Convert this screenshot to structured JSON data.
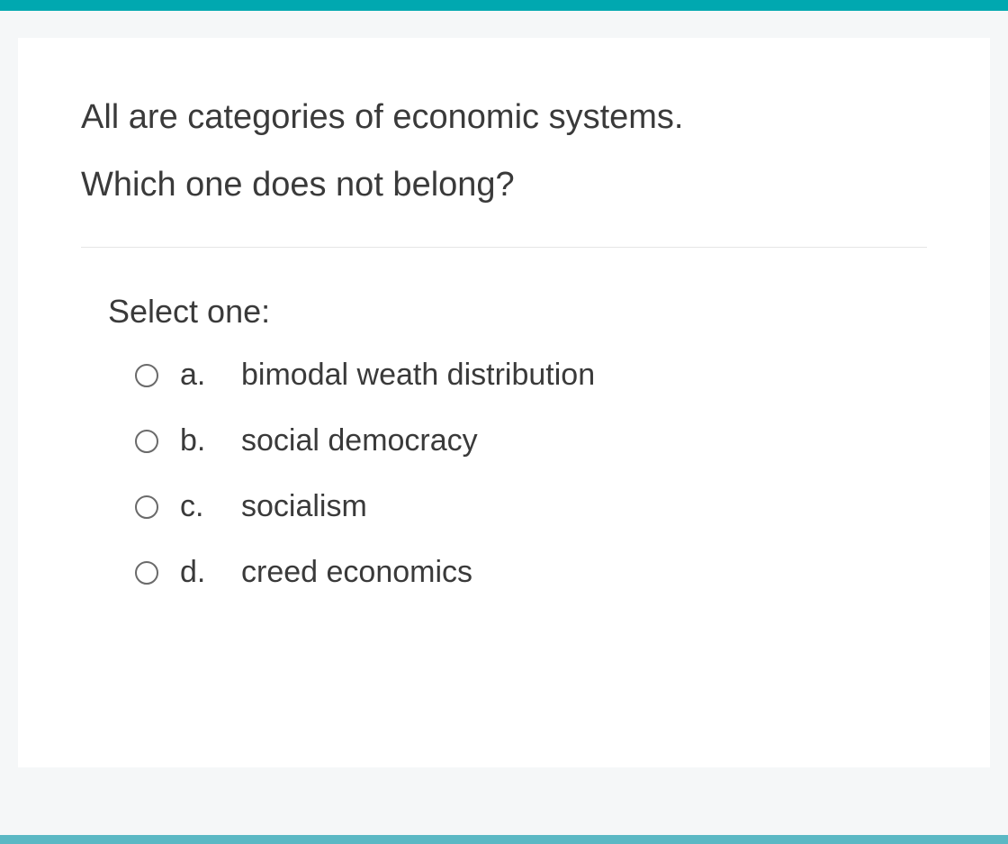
{
  "colors": {
    "accent_bar": "#00a8b0",
    "bottom_bar": "#5bb8c4",
    "background": "#f5f7f8",
    "card_background": "#ffffff",
    "text_color": "#3a3a3a",
    "radio_border": "#6a6a6a",
    "divider": "#e5e5e5"
  },
  "question": {
    "line1": "All are categories of economic systems.",
    "line2": "Which one does not belong?"
  },
  "prompt": "Select one:",
  "options": [
    {
      "letter": "a.",
      "text": "bimodal weath distribution",
      "selected": false
    },
    {
      "letter": "b.",
      "text": "social democracy",
      "selected": false
    },
    {
      "letter": "c.",
      "text": "socialism",
      "selected": false
    },
    {
      "letter": "d.",
      "text": "creed economics",
      "selected": false
    }
  ],
  "typography": {
    "question_fontsize": 38,
    "option_fontsize": 34,
    "font_family": "Segoe UI"
  }
}
